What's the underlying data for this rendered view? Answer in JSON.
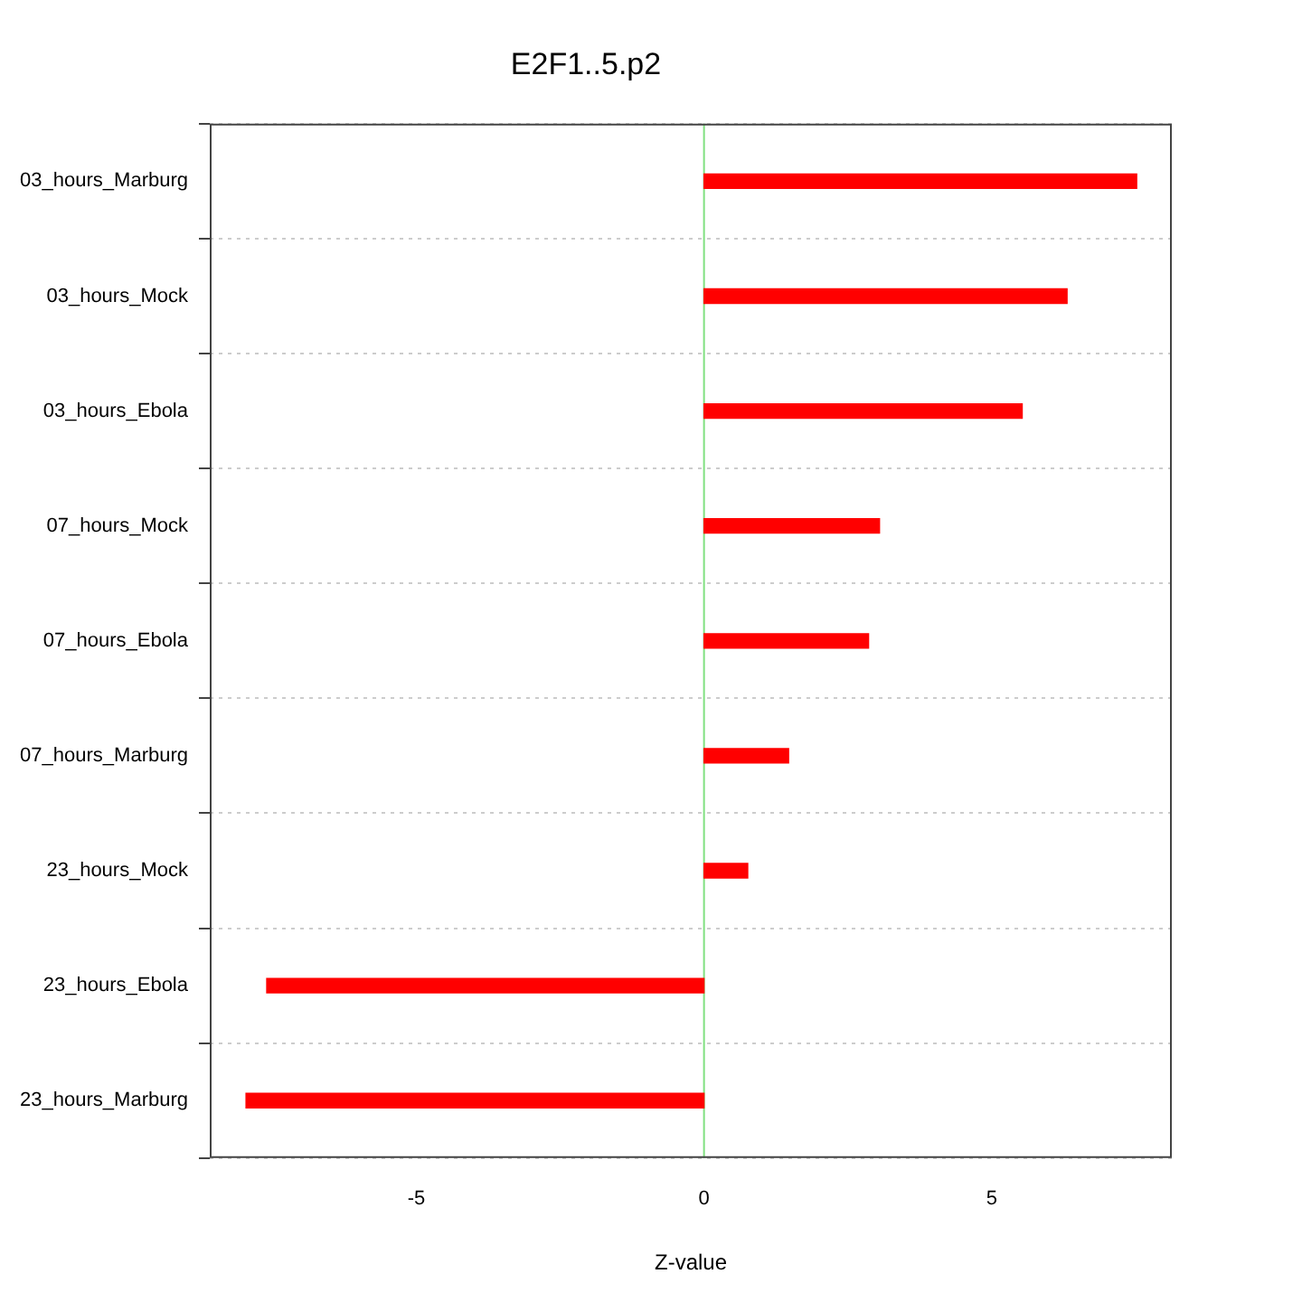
{
  "chart_data": {
    "type": "bar",
    "orientation": "horizontal",
    "title": "E2F1..5.p2",
    "xlabel": "Z-value",
    "categories": [
      "03_hours_Marburg",
      "03_hours_Mock",
      "03_hours_Ebola",
      "07_hours_Mock",
      "07_hours_Ebola",
      "07_hours_Marburg",
      "23_hours_Mock",
      "23_hours_Ebola",
      "23_hours_Marburg"
    ],
    "values": [
      7.52,
      6.31,
      5.53,
      3.05,
      2.86,
      1.47,
      0.76,
      -7.6,
      -7.96
    ],
    "color": "#ff0000",
    "xlim": [
      -8.59,
      8.13
    ],
    "xticks": [
      -5,
      0,
      5
    ],
    "grid": "y",
    "ref_lines": [
      {
        "axis": "x",
        "value": 0,
        "color": "#80e080"
      }
    ]
  }
}
